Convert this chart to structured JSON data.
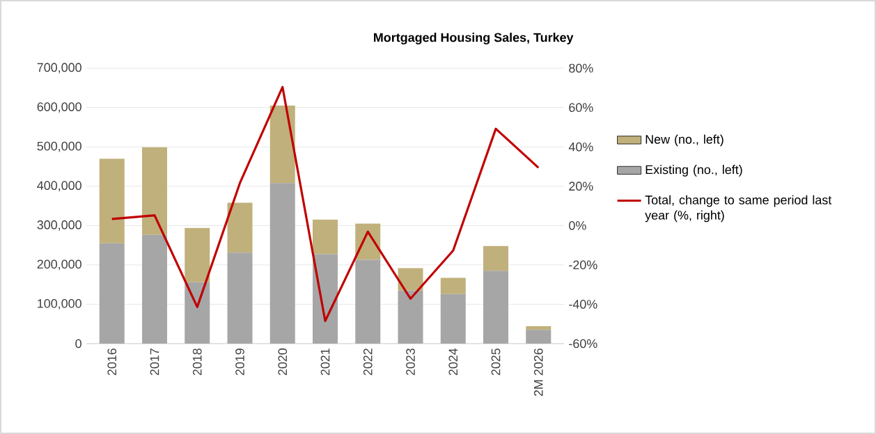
{
  "chart_data": {
    "type": "bar",
    "title": "Mortgaged Housing Sales, Turkey",
    "categories": [
      "2016",
      "2017",
      "2018",
      "2019",
      "2020",
      "2021",
      "2022",
      "2023",
      "2024",
      "2025",
      "2M 2026"
    ],
    "stacked": true,
    "series": [
      {
        "name": "Existing (no., left)",
        "color": "#a6a6a6",
        "values": [
          255000,
          276000,
          156000,
          231000,
          408000,
          227000,
          213000,
          135000,
          126000,
          185000,
          35000
        ]
      },
      {
        "name": "New (no., left)",
        "color": "#c0b07b",
        "values": [
          215000,
          223000,
          138000,
          127000,
          197000,
          88000,
          92000,
          57000,
          41000,
          63000,
          9000
        ]
      },
      {
        "name": "Total, change to same period last year (%, right)",
        "type": "line",
        "axis": "y2",
        "color": "#c00000",
        "values": [
          3.3,
          5.2,
          -41.4,
          21.6,
          70.4,
          -48.5,
          -3.1,
          -37.2,
          -12.7,
          49.2,
          29.4
        ]
      }
    ],
    "ylim": [
      0,
      700000
    ],
    "yticks": [
      {
        "value": 0,
        "label": "0"
      },
      {
        "value": 100000,
        "label": "100,000"
      },
      {
        "value": 200000,
        "label": "200,000"
      },
      {
        "value": 300000,
        "label": "300,000"
      },
      {
        "value": 400000,
        "label": "400,000"
      },
      {
        "value": 500000,
        "label": "500,000"
      },
      {
        "value": 600000,
        "label": "600,000"
      },
      {
        "value": 700000,
        "label": "700,000"
      }
    ],
    "y2lim": [
      -60,
      80
    ],
    "y2ticks": [
      {
        "value": -60,
        "label": "-60%"
      },
      {
        "value": -40,
        "label": "-40%"
      },
      {
        "value": -20,
        "label": "-20%"
      },
      {
        "value": 0,
        "label": "0%"
      },
      {
        "value": 20,
        "label": "20%"
      },
      {
        "value": 40,
        "label": "40%"
      },
      {
        "value": 60,
        "label": "60%"
      },
      {
        "value": 80,
        "label": "80%"
      }
    ],
    "grid": "y",
    "legend": "right"
  }
}
